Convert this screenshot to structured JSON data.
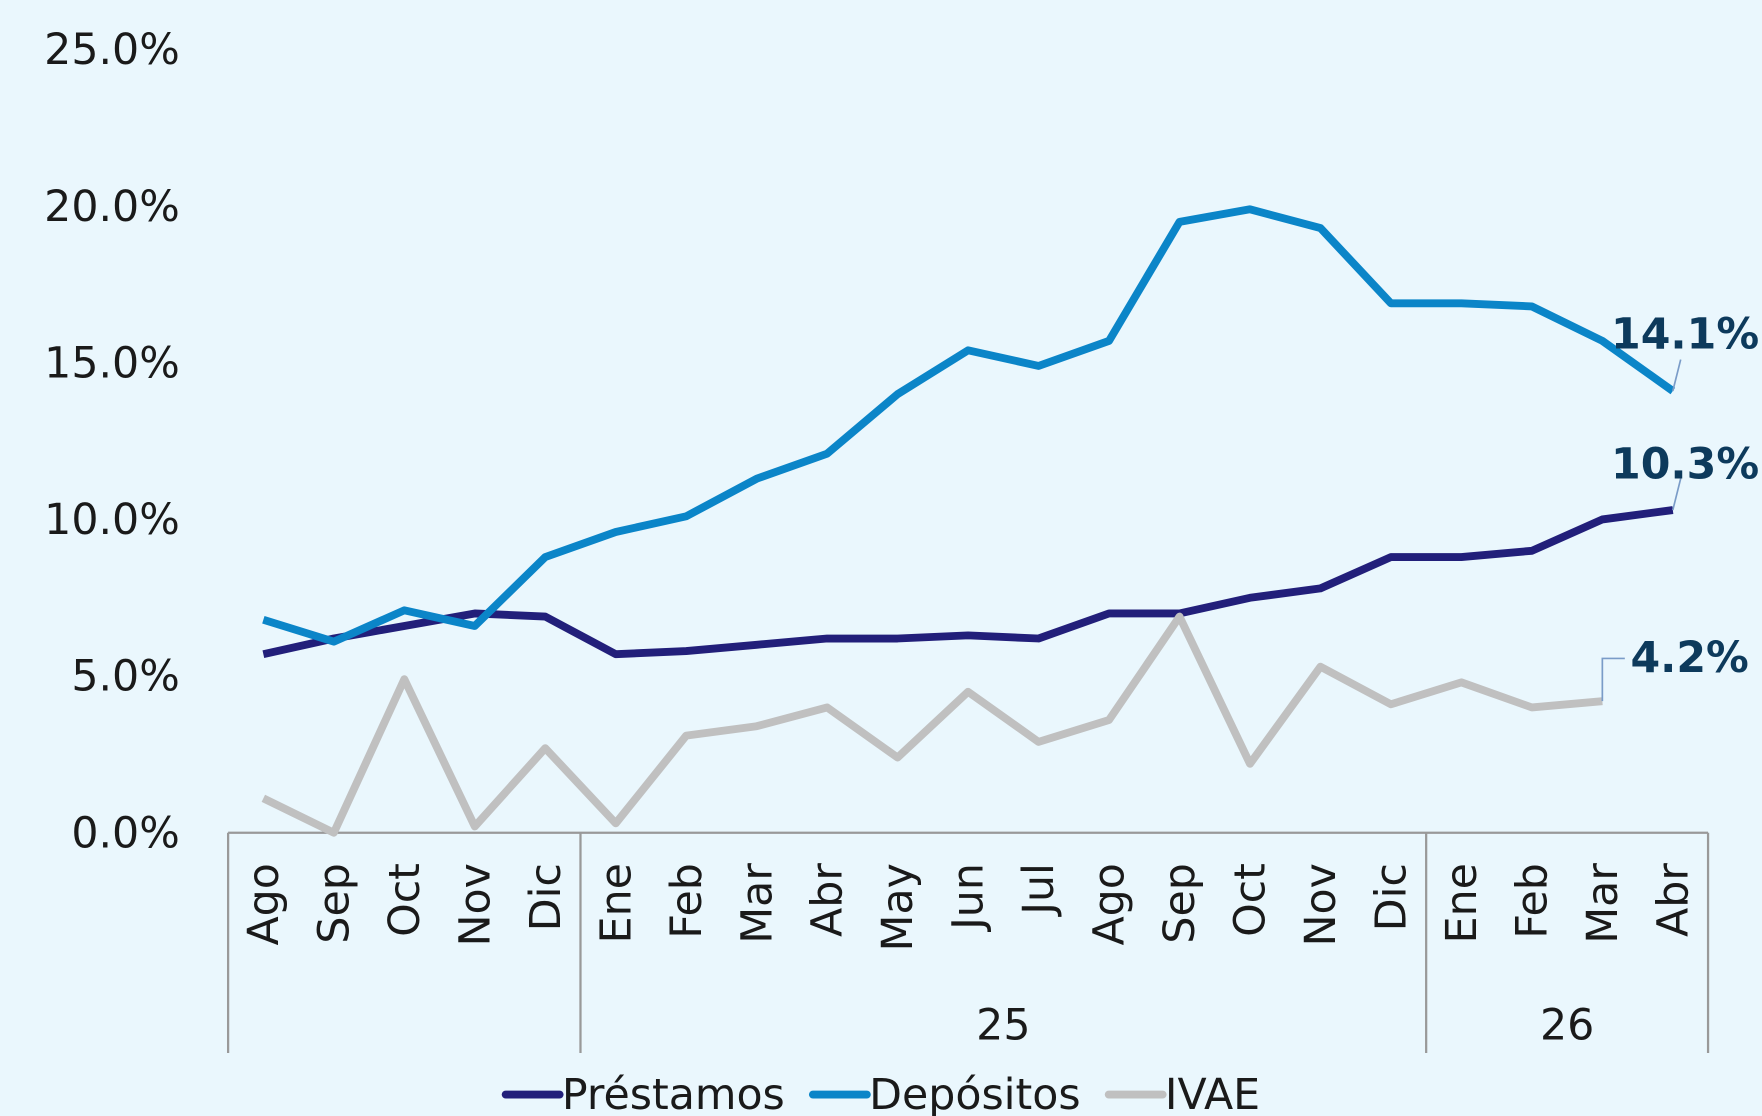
{
  "chart_data": {
    "type": "line",
    "categories": [
      "Ago",
      "Sep",
      "Oct",
      "Nov",
      "Dic",
      "Ene",
      "Feb",
      "Mar",
      "Abr",
      "May",
      "Jun",
      "Jul",
      "Ago",
      "Sep",
      "Oct",
      "Nov",
      "Dic",
      "Ene",
      "Feb",
      "Mar",
      "Abr"
    ],
    "x_groups": [
      {
        "label": null,
        "span": 5
      },
      {
        "label": "25",
        "span": 12
      },
      {
        "label": "26",
        "span": 4
      }
    ],
    "series": [
      {
        "name": "Préstamos",
        "color": "#221f7a",
        "values": [
          5.7,
          6.2,
          6.6,
          7.0,
          6.9,
          5.7,
          5.8,
          6.0,
          6.2,
          6.2,
          6.3,
          6.2,
          7.0,
          7.0,
          7.5,
          7.8,
          8.8,
          8.8,
          9.0,
          10.0,
          10.3
        ],
        "value_labels": [
          null,
          null,
          null,
          null,
          null,
          null,
          null,
          null,
          null,
          null,
          null,
          null,
          null,
          null,
          null,
          null,
          null,
          null,
          null,
          null,
          "10.3%"
        ]
      },
      {
        "name": "Depósitos",
        "color": "#0b85c8",
        "values": [
          6.8,
          6.1,
          7.1,
          6.6,
          8.8,
          9.6,
          10.1,
          11.3,
          12.1,
          14.0,
          15.4,
          14.9,
          15.7,
          19.5,
          19.9,
          19.3,
          16.9,
          16.9,
          16.8,
          15.7,
          14.1
        ],
        "value_labels": [
          null,
          null,
          null,
          null,
          null,
          null,
          null,
          null,
          null,
          null,
          null,
          null,
          null,
          null,
          null,
          null,
          null,
          null,
          null,
          null,
          "14.1%"
        ]
      },
      {
        "name": "IVAE",
        "color": "#c0c0c0",
        "values": [
          1.1,
          0.0,
          4.9,
          0.2,
          2.7,
          0.3,
          3.1,
          3.4,
          4.0,
          2.4,
          4.5,
          2.9,
          3.6,
          6.9,
          2.2,
          5.3,
          4.1,
          4.8,
          4.0,
          4.2,
          null
        ],
        "value_labels": [
          null,
          null,
          null,
          null,
          null,
          null,
          null,
          null,
          null,
          null,
          null,
          null,
          null,
          null,
          null,
          null,
          null,
          null,
          null,
          "4.2%",
          null
        ]
      }
    ],
    "ylim": [
      0,
      25
    ],
    "yticks": [
      {
        "value": 0,
        "label": "0.0%"
      },
      {
        "value": 5,
        "label": "5.0%"
      },
      {
        "value": 10,
        "label": "10.0%"
      },
      {
        "value": 15,
        "label": "15.0%"
      },
      {
        "value": 20,
        "label": "20.0%"
      },
      {
        "value": 25,
        "label": "25.0%"
      }
    ],
    "legend": "bottom"
  }
}
